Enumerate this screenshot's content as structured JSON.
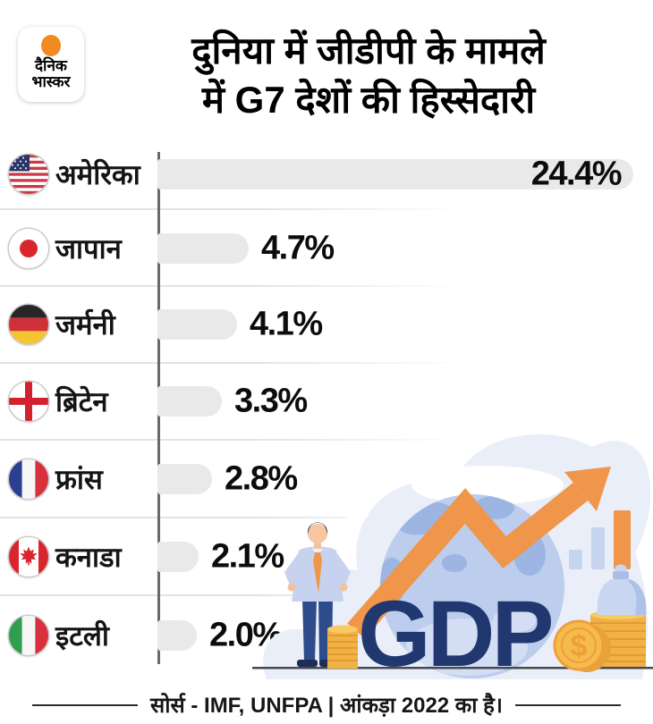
{
  "brand": {
    "logo_line1": "दैनिक",
    "logo_line2": "भास्कर"
  },
  "header": {
    "title_line1": "दुनिया में जीडीपी के मामले",
    "title_line2": "में G7 देशों की हिस्सेदारी"
  },
  "chart_data": {
    "type": "bar",
    "orientation": "horizontal",
    "title": "दुनिया में जीडीपी के मामले में G7 देशों की हिस्सेदारी",
    "unit": "% share of world GDP",
    "categories": [
      "अमेरिका",
      "जापान",
      "जर्मनी",
      "ब्रिटेन",
      "फ्रांस",
      "कनाडा",
      "इटली"
    ],
    "values": [
      24.4,
      4.7,
      4.1,
      3.3,
      2.8,
      2.1,
      2.0
    ],
    "bar_color": "#e9e9e9",
    "axis_color": "#66696d",
    "rows": [
      {
        "country": "अमेरिका",
        "flag": "usa",
        "value": 24.4,
        "value_label": "24.4%"
      },
      {
        "country": "जापान",
        "flag": "japan",
        "value": 4.7,
        "value_label": "4.7%"
      },
      {
        "country": "जर्मनी",
        "flag": "germany",
        "value": 4.1,
        "value_label": "4.1%"
      },
      {
        "country": "ब्रिटेन",
        "flag": "britain",
        "value": 3.3,
        "value_label": "3.3%"
      },
      {
        "country": "फ्रांस",
        "flag": "france",
        "value": 2.8,
        "value_label": "2.8%"
      },
      {
        "country": "कनाडा",
        "flag": "canada",
        "value": 2.1,
        "value_label": "2.1%"
      },
      {
        "country": "इटली",
        "flag": "italy",
        "value": 2.0,
        "value_label": "2.0%"
      }
    ]
  },
  "illustration": {
    "gdp_label": "GDP",
    "dollar_sign": "$",
    "accent_orange": "#f0964a",
    "navy": "#20376f"
  },
  "footer": {
    "source_text": "सोर्स - IMF, UNFPA | आंकड़ा 2022 का है।"
  }
}
